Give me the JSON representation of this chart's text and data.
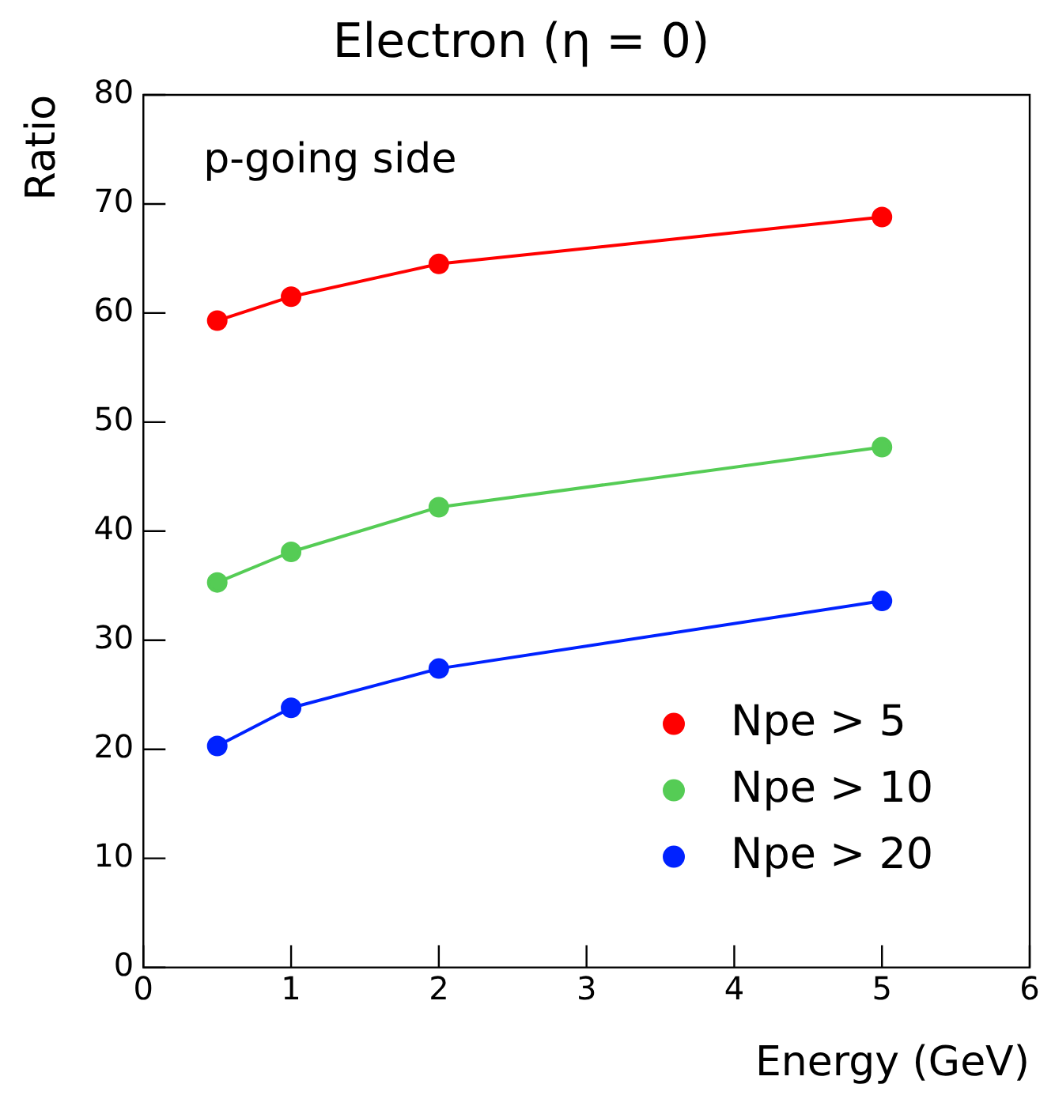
{
  "chart_data": {
    "type": "line",
    "title": "Electron (η = 0)",
    "xlabel": "Energy (GeV)",
    "ylabel": "Ratio",
    "annotations": [
      "p-going side"
    ],
    "x": [
      0.5,
      1,
      2,
      5
    ],
    "series": [
      {
        "name": "Npe > 5",
        "color": "#ff0000",
        "values": [
          59.3,
          61.5,
          64.5,
          68.8
        ]
      },
      {
        "name": "Npe > 10",
        "color": "#55cc55",
        "values": [
          35.3,
          38.1,
          42.2,
          47.7
        ]
      },
      {
        "name": "Npe > 20",
        "color": "#0022ff",
        "values": [
          20.3,
          23.8,
          27.4,
          33.6
        ]
      }
    ],
    "xlim": [
      0,
      6
    ],
    "xticks": [
      0,
      1,
      2,
      3,
      4,
      5,
      6
    ],
    "ylim": [
      0,
      80
    ],
    "yticks": [
      0,
      10,
      20,
      30,
      40,
      50,
      60,
      70,
      80
    ],
    "grid": false,
    "legend": "bottom right",
    "marker": "circle",
    "line_style": "solid"
  }
}
